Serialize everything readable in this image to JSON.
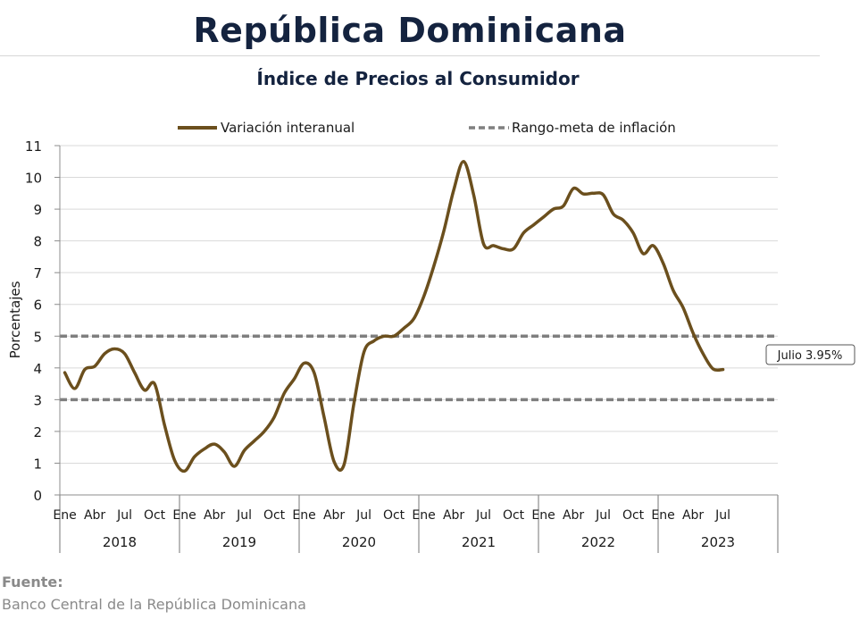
{
  "header": {
    "title": "República Dominicana",
    "subtitle": "Índice de Precios al Consumidor"
  },
  "footer": {
    "source_label": "Fuente:",
    "source_text": "Banco Central de la República Dominicana"
  },
  "colors": {
    "series_line": "#6b4f1d",
    "target_line": "#7f7f7f",
    "grid": "#d9d9d9",
    "title": "#14233f"
  },
  "chart_data": {
    "type": "line",
    "ylabel": "Porcentajes",
    "ylim": [
      0,
      11
    ],
    "yticks": [
      0,
      1,
      2,
      3,
      4,
      5,
      6,
      7,
      8,
      9,
      10,
      11
    ],
    "grid": true,
    "legend": {
      "placement": "top",
      "series_label": "Variación interanual",
      "target_label": "Rango-meta de inflación"
    },
    "month_tick_labels": [
      "Ene",
      "Abr",
      "Jul",
      "Oct"
    ],
    "years": [
      "2018",
      "2019",
      "2020",
      "2021",
      "2022",
      "2023"
    ],
    "target_range": [
      3,
      5
    ],
    "annotation": "Julio 3.95%",
    "series": [
      {
        "name": "Variación interanual",
        "start": "2018-01",
        "values": [
          3.85,
          3.35,
          3.95,
          4.05,
          4.45,
          4.6,
          4.45,
          3.85,
          3.3,
          3.5,
          2.2,
          1.1,
          0.75,
          1.2,
          1.45,
          1.6,
          1.35,
          0.9,
          1.4,
          1.7,
          2.0,
          2.45,
          3.2,
          3.65,
          4.15,
          3.85,
          2.45,
          1.05,
          0.95,
          2.9,
          4.5,
          4.85,
          5.0,
          5.0,
          5.25,
          5.55,
          6.25,
          7.2,
          8.3,
          9.6,
          10.5,
          9.45,
          7.9,
          7.85,
          7.75,
          7.75,
          8.25,
          8.5,
          8.75,
          9.0,
          9.1,
          9.65,
          9.48,
          9.5,
          9.45,
          8.85,
          8.65,
          8.25,
          7.6,
          7.85,
          7.3,
          6.45,
          5.9,
          5.1,
          4.45,
          3.97,
          3.95
        ]
      }
    ]
  }
}
